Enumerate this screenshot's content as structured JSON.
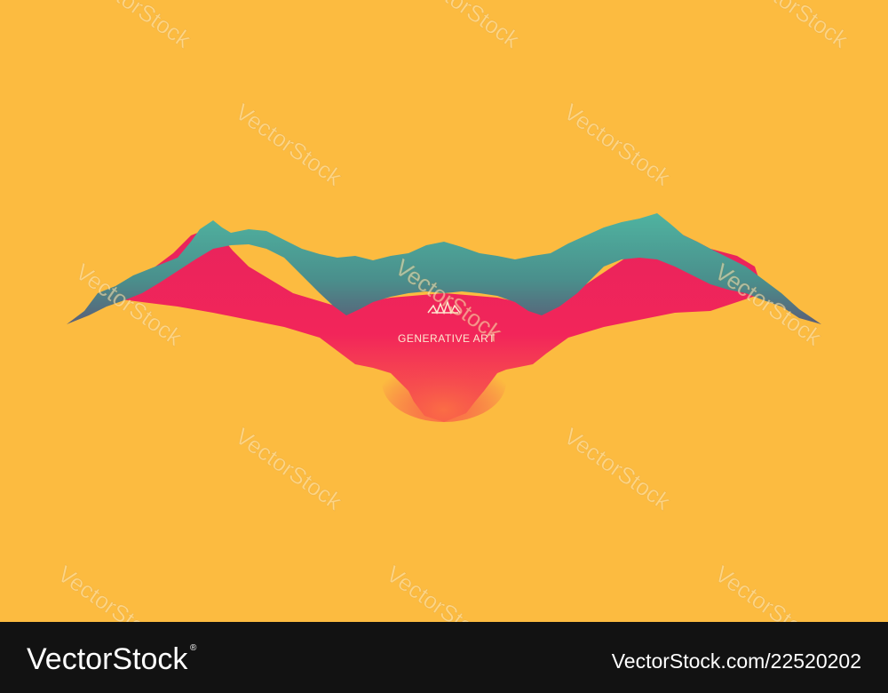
{
  "art": {
    "caption": "GENERATIVE ART"
  },
  "watermark": "VectorStock",
  "footer": {
    "logo": "VectorStock",
    "registered": "®",
    "url": "VectorStock.com/22520202"
  }
}
